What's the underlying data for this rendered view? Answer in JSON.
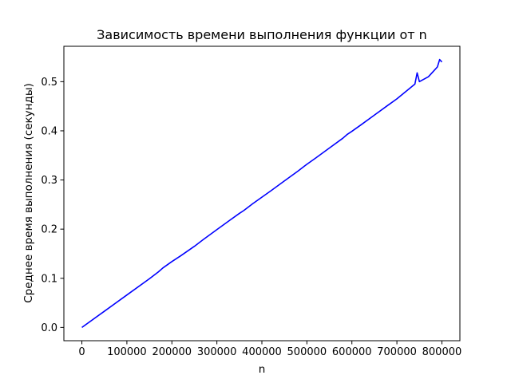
{
  "chart_data": {
    "type": "line",
    "title": "Зависимость времени выполнения функции   от n",
    "xlabel": "n",
    "ylabel": "Среднее время выполнения (секунды)",
    "xlim": [
      -40000,
      840000
    ],
    "ylim": [
      -0.027,
      0.572
    ],
    "xticks": [
      0,
      100000,
      200000,
      300000,
      400000,
      500000,
      600000,
      700000,
      800000
    ],
    "yticks": [
      0.0,
      0.1,
      0.2,
      0.3,
      0.4,
      0.5
    ],
    "xtick_labels": [
      "0",
      "100000",
      "200000",
      "300000",
      "400000",
      "500000",
      "600000",
      "700000",
      "800000"
    ],
    "ytick_labels": [
      "0.0",
      "0.1",
      "0.2",
      "0.3",
      "0.4",
      "0.5"
    ],
    "grid": false,
    "series": [
      {
        "color": "#0000ff",
        "x": [
          0,
          50000,
          100000,
          150000,
          170000,
          180000,
          200000,
          220000,
          250000,
          270000,
          300000,
          330000,
          350000,
          360000,
          380000,
          400000,
          420000,
          450000,
          480000,
          500000,
          520000,
          550000,
          580000,
          590000,
          600000,
          620000,
          650000,
          680000,
          700000,
          720000,
          740000,
          745000,
          750000,
          770000,
          780000,
          790000,
          795000,
          800000
        ],
        "y": [
          0.0,
          0.033,
          0.066,
          0.099,
          0.113,
          0.121,
          0.134,
          0.146,
          0.165,
          0.179,
          0.199,
          0.219,
          0.232,
          0.238,
          0.252,
          0.265,
          0.278,
          0.298,
          0.318,
          0.332,
          0.345,
          0.365,
          0.385,
          0.393,
          0.399,
          0.412,
          0.432,
          0.452,
          0.465,
          0.48,
          0.495,
          0.518,
          0.5,
          0.51,
          0.52,
          0.53,
          0.545,
          0.54
        ]
      }
    ]
  }
}
